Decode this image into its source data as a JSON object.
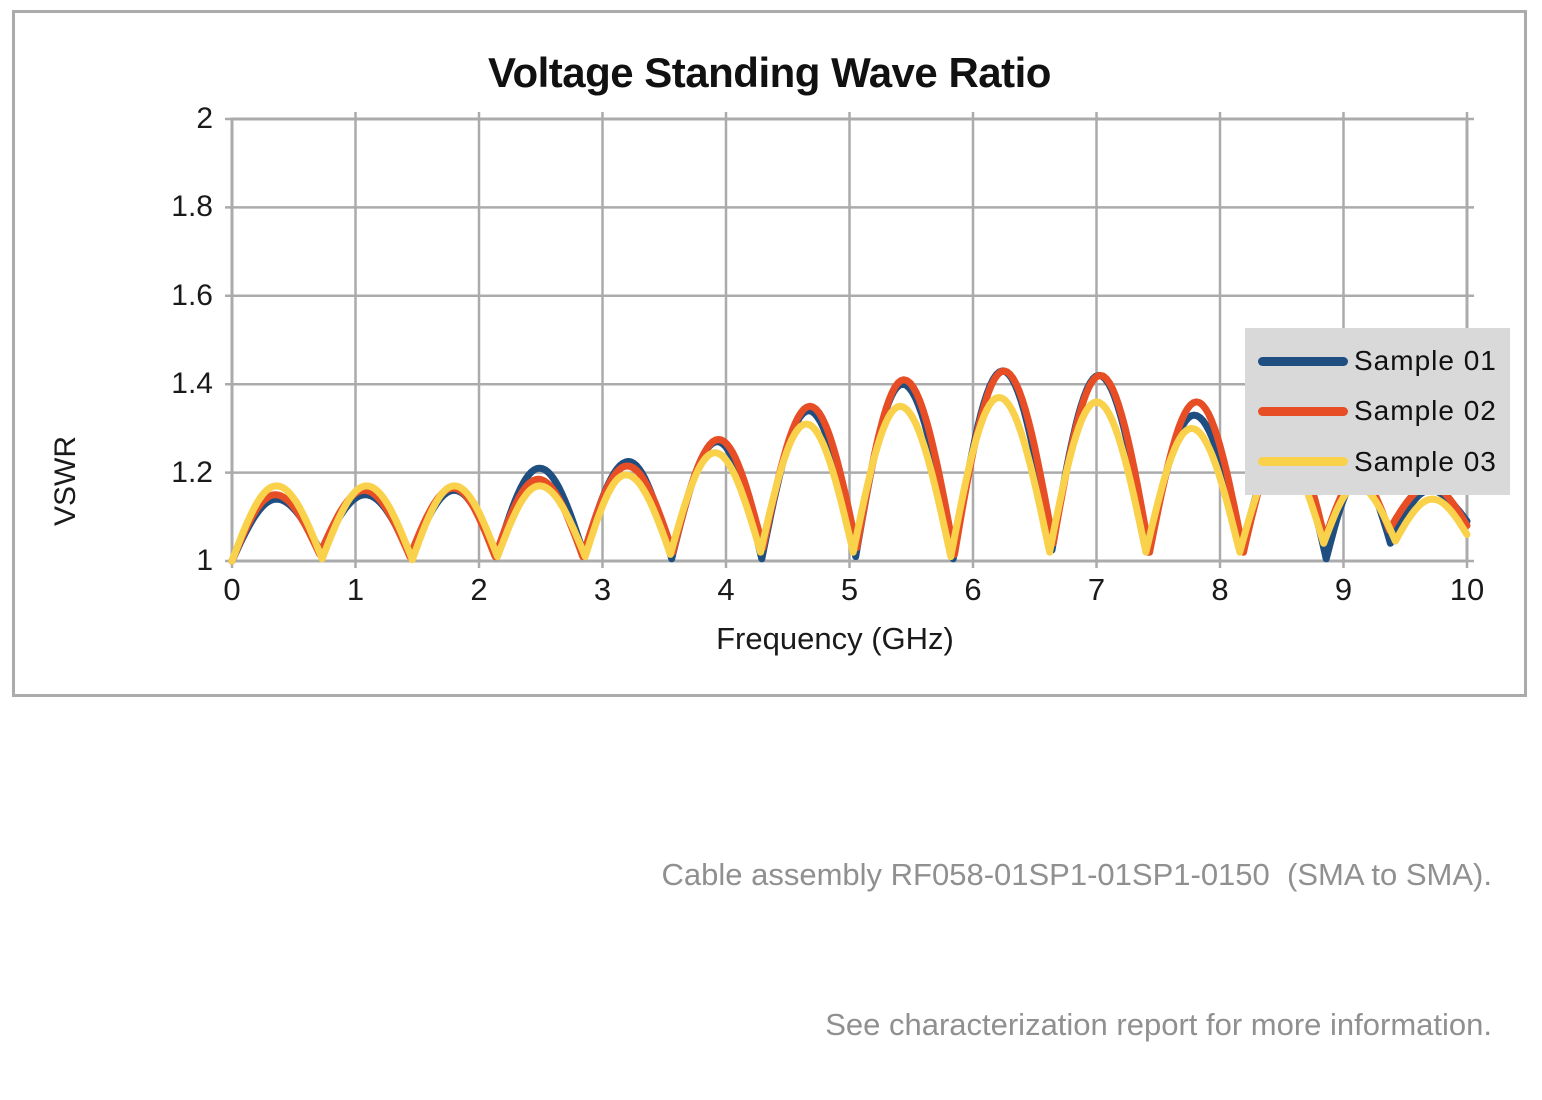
{
  "chart_data": {
    "type": "line",
    "title": "Voltage Standing Wave Ratio",
    "xlabel": "Frequency (GHz)",
    "ylabel": "VSWR",
    "xlim": [
      0,
      10
    ],
    "ylim": [
      1,
      2
    ],
    "x_ticks": [
      "0",
      "1",
      "2",
      "3",
      "4",
      "5",
      "6",
      "7",
      "8",
      "9",
      "10"
    ],
    "y_ticks": [
      "2",
      "1.8",
      "1.6",
      "1.4",
      "1.2",
      "1"
    ],
    "y_tick_values": [
      2,
      1.8,
      1.6,
      1.4,
      1.2,
      1
    ],
    "x_tick_values": [
      0,
      1,
      2,
      3,
      4,
      5,
      6,
      7,
      8,
      9,
      10
    ],
    "grid": true,
    "legend_position": "inside-right",
    "series": [
      {
        "name": "Sample 01",
        "color": "#1F4E80",
        "points": [
          [
            0,
            1.0
          ],
          [
            0.36,
            1.14
          ],
          [
            0.72,
            1.02
          ],
          [
            1.08,
            1.15
          ],
          [
            1.45,
            1.01
          ],
          [
            1.8,
            1.16
          ],
          [
            2.14,
            1.01
          ],
          [
            2.49,
            1.21
          ],
          [
            2.85,
            1.015
          ],
          [
            3.21,
            1.225
          ],
          [
            3.56,
            1.005
          ],
          [
            3.93,
            1.27
          ],
          [
            4.29,
            1.005
          ],
          [
            4.67,
            1.34
          ],
          [
            5.05,
            1.01
          ],
          [
            5.43,
            1.4
          ],
          [
            5.84,
            1.005
          ],
          [
            6.24,
            1.43
          ],
          [
            6.64,
            1.025
          ],
          [
            7.02,
            1.42
          ],
          [
            7.42,
            1.02
          ],
          [
            7.79,
            1.33
          ],
          [
            8.18,
            1.03
          ],
          [
            8.52,
            1.27
          ],
          [
            8.86,
            1.005
          ],
          [
            9.13,
            1.19
          ],
          [
            9.38,
            1.04
          ],
          [
            9.7,
            1.16
          ],
          [
            10,
            1.09
          ]
        ]
      },
      {
        "name": "Sample 02",
        "color": "#E84E25",
        "points": [
          [
            0,
            1.0
          ],
          [
            0.35,
            1.15
          ],
          [
            0.71,
            1.015
          ],
          [
            1.07,
            1.16
          ],
          [
            1.44,
            1.01
          ],
          [
            1.79,
            1.165
          ],
          [
            2.13,
            1.01
          ],
          [
            2.48,
            1.185
          ],
          [
            2.84,
            1.01
          ],
          [
            3.2,
            1.215
          ],
          [
            3.57,
            1.02
          ],
          [
            3.94,
            1.275
          ],
          [
            4.3,
            1.03
          ],
          [
            4.68,
            1.35
          ],
          [
            5.06,
            1.03
          ],
          [
            5.44,
            1.41
          ],
          [
            5.85,
            1.015
          ],
          [
            6.25,
            1.43
          ],
          [
            6.65,
            1.04
          ],
          [
            7.03,
            1.42
          ],
          [
            7.43,
            1.02
          ],
          [
            7.81,
            1.36
          ],
          [
            8.19,
            1.02
          ],
          [
            8.53,
            1.28
          ],
          [
            8.85,
            1.05
          ],
          [
            9.12,
            1.19
          ],
          [
            9.37,
            1.07
          ],
          [
            9.7,
            1.17
          ],
          [
            10,
            1.08
          ]
        ]
      },
      {
        "name": "Sample 03",
        "color": "#F9D14B",
        "points": [
          [
            0,
            1.0
          ],
          [
            0.36,
            1.17
          ],
          [
            0.73,
            1.005
          ],
          [
            1.09,
            1.17
          ],
          [
            1.46,
            1.003
          ],
          [
            1.8,
            1.17
          ],
          [
            2.15,
            1.01
          ],
          [
            2.49,
            1.17
          ],
          [
            2.86,
            1.01
          ],
          [
            3.19,
            1.195
          ],
          [
            3.55,
            1.015
          ],
          [
            3.91,
            1.245
          ],
          [
            4.28,
            1.02
          ],
          [
            4.65,
            1.31
          ],
          [
            5.03,
            1.02
          ],
          [
            5.41,
            1.35
          ],
          [
            5.82,
            1.01
          ],
          [
            6.21,
            1.37
          ],
          [
            6.62,
            1.02
          ],
          [
            7,
            1.36
          ],
          [
            7.4,
            1.02
          ],
          [
            7.77,
            1.3
          ],
          [
            8.16,
            1.02
          ],
          [
            8.5,
            1.24
          ],
          [
            8.84,
            1.04
          ],
          [
            9.11,
            1.17
          ],
          [
            9.42,
            1.045
          ],
          [
            9.72,
            1.14
          ],
          [
            10,
            1.06
          ]
        ]
      }
    ]
  },
  "caption": {
    "line1": "Cable assembly RF058-01SP1-01SP1-0150  (SMA to SMA).",
    "line2": "See characterization report for more information."
  },
  "colors": {
    "grid": "#ABABAB",
    "plot_border": "#ABABAB",
    "figure_border": "#ABABAB",
    "legend_background": "#D9D9D9",
    "caption_text": "#909090",
    "title_text": "#111111",
    "axis_text": "#1a1a1a"
  }
}
